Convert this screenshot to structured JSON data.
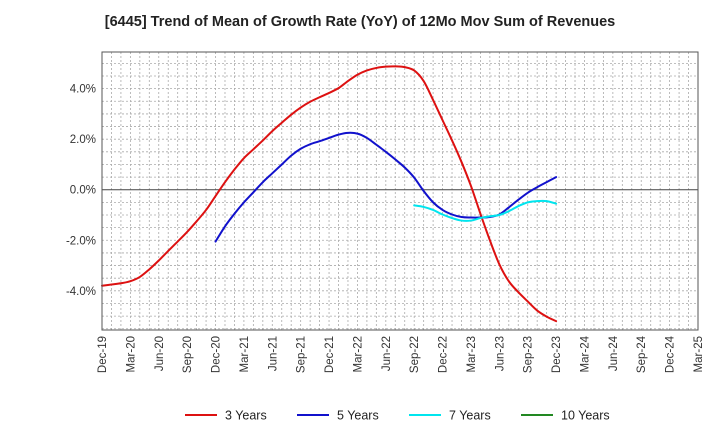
{
  "chart_data": {
    "type": "line",
    "title": "[6445]  Trend of Mean of Growth Rate (YoY) of 12Mo Mov Sum of Revenues",
    "xlabel": "",
    "ylabel": "",
    "x_ticks": [
      "Dec-19",
      "Mar-20",
      "Jun-20",
      "Sep-20",
      "Dec-20",
      "Mar-21",
      "Jun-21",
      "Sep-21",
      "Dec-21",
      "Mar-22",
      "Jun-22",
      "Sep-22",
      "Dec-22",
      "Mar-23",
      "Jun-23",
      "Sep-23",
      "Dec-23",
      "Mar-24",
      "Jun-24",
      "Sep-24",
      "Dec-24",
      "Mar-25"
    ],
    "y_ticks": [
      -4.0,
      -2.0,
      0.0,
      2.0,
      4.0
    ],
    "y_tick_labels": [
      "-4.0%",
      "-2.0%",
      "0.0%",
      "2.0%",
      "4.0%"
    ],
    "ylim": [
      -5.55,
      5.45
    ],
    "grid": true,
    "legend_position": "bottom",
    "series": [
      {
        "name": "3 Years",
        "color": "#dd1111",
        "points": [
          [
            0,
            -3.8
          ],
          [
            1,
            -3.75
          ],
          [
            2,
            -3.7
          ],
          [
            3,
            -3.62
          ],
          [
            4,
            -3.45
          ],
          [
            5,
            -3.15
          ],
          [
            6,
            -2.8
          ],
          [
            7,
            -2.42
          ],
          [
            8,
            -2.05
          ],
          [
            9,
            -1.67
          ],
          [
            10,
            -1.25
          ],
          [
            11,
            -0.8
          ],
          [
            12,
            -0.25
          ],
          [
            13,
            0.3
          ],
          [
            14,
            0.8
          ],
          [
            15,
            1.25
          ],
          [
            16,
            1.6
          ],
          [
            17,
            1.95
          ],
          [
            18,
            2.32
          ],
          [
            19,
            2.65
          ],
          [
            20,
            2.97
          ],
          [
            21,
            3.25
          ],
          [
            22,
            3.48
          ],
          [
            23,
            3.66
          ],
          [
            24,
            3.83
          ],
          [
            25,
            4.02
          ],
          [
            26,
            4.3
          ],
          [
            27,
            4.55
          ],
          [
            28,
            4.72
          ],
          [
            29,
            4.82
          ],
          [
            30,
            4.87
          ],
          [
            31,
            4.88
          ],
          [
            32,
            4.85
          ],
          [
            33,
            4.72
          ],
          [
            34,
            4.3
          ],
          [
            35,
            3.55
          ],
          [
            36,
            2.75
          ],
          [
            37,
            1.95
          ],
          [
            38,
            1.1
          ],
          [
            39,
            0.15
          ],
          [
            40,
            -0.95
          ],
          [
            41,
            -2.0
          ],
          [
            42,
            -2.95
          ],
          [
            43,
            -3.62
          ],
          [
            44,
            -4.05
          ],
          [
            45,
            -4.42
          ],
          [
            46,
            -4.78
          ],
          [
            47,
            -5.02
          ],
          [
            48,
            -5.2
          ]
        ]
      },
      {
        "name": "5 Years",
        "color": "#1111cc",
        "points": [
          [
            12,
            -2.05
          ],
          [
            13,
            -1.45
          ],
          [
            14,
            -0.95
          ],
          [
            15,
            -0.5
          ],
          [
            16,
            -0.1
          ],
          [
            17,
            0.3
          ],
          [
            18,
            0.65
          ],
          [
            19,
            1.0
          ],
          [
            20,
            1.35
          ],
          [
            21,
            1.62
          ],
          [
            22,
            1.8
          ],
          [
            23,
            1.92
          ],
          [
            24,
            2.05
          ],
          [
            25,
            2.18
          ],
          [
            26,
            2.25
          ],
          [
            27,
            2.22
          ],
          [
            28,
            2.05
          ],
          [
            29,
            1.78
          ],
          [
            30,
            1.5
          ],
          [
            31,
            1.2
          ],
          [
            32,
            0.88
          ],
          [
            33,
            0.48
          ],
          [
            34,
            -0.05
          ],
          [
            35,
            -0.5
          ],
          [
            36,
            -0.8
          ],
          [
            37,
            -0.98
          ],
          [
            38,
            -1.08
          ],
          [
            39,
            -1.1
          ],
          [
            40,
            -1.1
          ],
          [
            41,
            -1.08
          ],
          [
            42,
            -0.98
          ],
          [
            43,
            -0.7
          ],
          [
            44,
            -0.4
          ],
          [
            45,
            -0.12
          ],
          [
            46,
            0.1
          ],
          [
            47,
            0.3
          ],
          [
            48,
            0.5
          ]
        ]
      },
      {
        "name": "7 Years",
        "color": "#00e5ee",
        "points": [
          [
            33,
            -0.62
          ],
          [
            34,
            -0.68
          ],
          [
            35,
            -0.8
          ],
          [
            36,
            -0.98
          ],
          [
            37,
            -1.12
          ],
          [
            38,
            -1.22
          ],
          [
            39,
            -1.22
          ],
          [
            40,
            -1.12
          ],
          [
            41,
            -1.05
          ],
          [
            42,
            -1.0
          ],
          [
            43,
            -0.85
          ],
          [
            44,
            -0.65
          ],
          [
            45,
            -0.5
          ],
          [
            46,
            -0.45
          ],
          [
            47,
            -0.45
          ],
          [
            48,
            -0.55
          ]
        ]
      },
      {
        "name": "10 Years",
        "color": "#228822",
        "points": []
      }
    ]
  }
}
